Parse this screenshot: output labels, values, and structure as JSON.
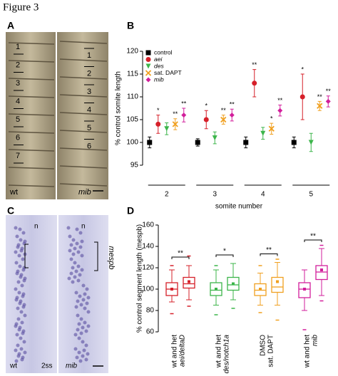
{
  "figure_title": "Figure 3",
  "panel_a": {
    "label": "A",
    "left_numbers": [
      "1",
      "2",
      "3",
      "4",
      "5",
      "6",
      "7"
    ],
    "right_numbers": [
      "1",
      "2",
      "3",
      "4",
      "5",
      "6"
    ],
    "left_label": "wt",
    "right_label": "mib"
  },
  "panel_c": {
    "label": "C",
    "n_labels": [
      "n",
      "n"
    ],
    "gene_label": "mespb",
    "left_label": "wt",
    "stage_label": "2ss",
    "right_label": "mib"
  },
  "chart_data": [
    {
      "type": "errorbar",
      "panel_label": "B",
      "ylabel": "% control somite length",
      "xlabel": "somite number",
      "categories": [
        "2",
        "3",
        "4",
        "5"
      ],
      "ylim": [
        95,
        120
      ],
      "yticks": [
        95,
        100,
        105,
        110,
        115,
        120
      ],
      "legend": "top-left",
      "series": [
        {
          "name": "control",
          "color": "#000000",
          "marker": "square",
          "style": "normal",
          "values": [
            100,
            100,
            100,
            100
          ],
          "errors": [
            1.2,
            0.8,
            1.2,
            1.2
          ],
          "significance": [
            null,
            null,
            null,
            null
          ]
        },
        {
          "name": "aei",
          "color": "#d6202a",
          "marker": "circle",
          "style": "italic",
          "values": [
            104,
            105,
            113,
            110
          ],
          "errors": [
            2,
            2,
            3,
            5
          ],
          "significance": [
            "*",
            "*",
            "**",
            "*"
          ]
        },
        {
          "name": "des",
          "color": "#3cb54a",
          "marker": "triangle",
          "style": "italic",
          "values": [
            103,
            101,
            102,
            100
          ],
          "errors": [
            1.3,
            1.3,
            1.3,
            2
          ],
          "significance": [
            null,
            null,
            null,
            null
          ]
        },
        {
          "name": "sat. DAPT",
          "color": "#f0a020",
          "marker": "x",
          "style": "normal",
          "values": [
            104,
            105,
            103,
            108
          ],
          "errors": [
            1.2,
            1,
            1.2,
            1
          ],
          "significance": [
            "**",
            "**",
            "*",
            "**"
          ]
        },
        {
          "name": "mib",
          "color": "#d21e9b",
          "marker": "diamond",
          "style": "italic",
          "values": [
            106,
            106,
            107,
            109
          ],
          "errors": [
            1.5,
            1.3,
            1.2,
            1.2
          ],
          "significance": [
            "**",
            "**",
            "**",
            "**"
          ]
        }
      ]
    },
    {
      "type": "box",
      "panel_label": "D",
      "ylabel": "% control segment length (mespb)",
      "ylim": [
        60,
        160
      ],
      "yticks": [
        60,
        80,
        100,
        120,
        140,
        160
      ],
      "groups": [
        {
          "labels": [
            "wt and het",
            "aei/deltaD"
          ],
          "color": "#d6202a",
          "significance": "**",
          "boxes": [
            {
              "min": 88,
              "q1": 94,
              "median": 100,
              "q3": 106,
              "max": 118,
              "mean": 100,
              "outliers": [
                77,
                122
              ]
            },
            {
              "min": 90,
              "q1": 101,
              "median": 105,
              "q3": 111,
              "max": 122,
              "mean": 107,
              "outliers": [
                84,
                131
              ]
            }
          ]
        },
        {
          "labels": [
            "wt and het",
            "des/notch1a"
          ],
          "color": "#3cb54a",
          "significance": "*",
          "boxes": [
            {
              "min": 85,
              "q1": 94,
              "median": 99,
              "q3": 106,
              "max": 118,
              "mean": 100,
              "outliers": [
                76,
                122
              ]
            },
            {
              "min": 90,
              "q1": 99,
              "median": 104,
              "q3": 111,
              "max": 124,
              "mean": 105,
              "outliers": [
                82
              ]
            }
          ]
        },
        {
          "labels": [
            "DMSO",
            "sat. DAPT"
          ],
          "color": "#f0a020",
          "significance": "**",
          "boxes": [
            {
              "min": 85,
              "q1": 94,
              "median": 99,
              "q3": 105,
              "max": 115,
              "mean": 100,
              "outliers": [
                78,
                122
              ]
            },
            {
              "min": 85,
              "q1": 97,
              "median": 102,
              "q3": 111,
              "max": 125,
              "mean": 107,
              "outliers": [
                71,
                128
              ]
            }
          ]
        },
        {
          "labels": [
            "wt and het",
            "mib"
          ],
          "color": "#d21e9b",
          "significance": "**",
          "boxes": [
            {
              "min": 80,
              "q1": 92,
              "median": 100,
              "q3": 106,
              "max": 118,
              "mean": 100,
              "outliers": [
                62
              ]
            },
            {
              "min": 94,
              "q1": 109,
              "median": 116,
              "q3": 122,
              "max": 138,
              "mean": 118,
              "outliers": [
                89,
                141
              ]
            }
          ]
        }
      ]
    }
  ]
}
